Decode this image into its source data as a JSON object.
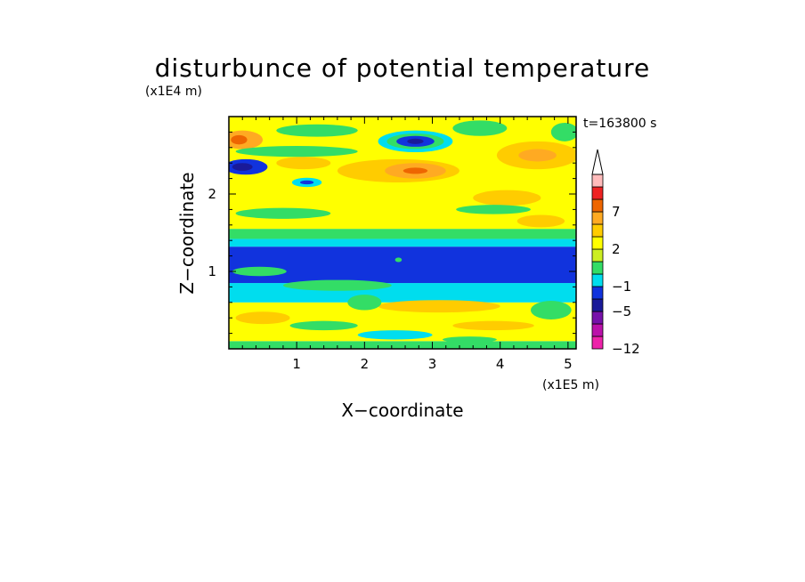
{
  "chart_data": {
    "type": "heatmap",
    "title": "disturbunce of potential temperature",
    "y_scale_label": "(x1E4 m)",
    "x_scale_label": "(x1E5 m)",
    "time_label": "t=163800 s",
    "xlabel": "X−coordinate",
    "ylabel": "Z−coordinate",
    "xlim": [
      0,
      5.12
    ],
    "ylim": [
      0,
      3.0
    ],
    "x_ticks": [
      1,
      2,
      3,
      4,
      5
    ],
    "y_ticks": [
      1,
      2
    ],
    "colorbar": {
      "levels": [
        -12,
        -10,
        -8,
        -5,
        -3,
        -1,
        0,
        1,
        2,
        3,
        5,
        7,
        9,
        11
      ],
      "labels": [
        {
          "value": -12,
          "text": "−12"
        },
        {
          "value": -5,
          "text": "−5"
        },
        {
          "value": -1,
          "text": "−1"
        },
        {
          "value": 2,
          "text": "2"
        },
        {
          "value": 7,
          "text": "7"
        }
      ],
      "colors": [
        "#ee22aa",
        "#bb11aa",
        "#7711aa",
        "#1a1a99",
        "#1133dd",
        "#00ddee",
        "#33dd66",
        "#ccee22",
        "#ffff00",
        "#ffcc00",
        "#ffaa22",
        "#ee6600",
        "#ee2222",
        "#ffbbbb"
      ],
      "extend_top": true
    },
    "field_bands": [
      {
        "z0": 0.0,
        "z1": 0.1,
        "color": "#33dd66"
      },
      {
        "z0": 0.1,
        "z1": 0.6,
        "color": "#ffff00"
      },
      {
        "z0": 0.6,
        "z1": 0.85,
        "color": "#00ddee"
      },
      {
        "z0": 0.85,
        "z1": 1.32,
        "color": "#1133dd"
      },
      {
        "z0": 1.32,
        "z1": 1.42,
        "color": "#00ddee"
      },
      {
        "z0": 1.42,
        "z1": 1.55,
        "color": "#33dd66"
      },
      {
        "z0": 1.55,
        "z1": 3.0,
        "color": "#ffff00"
      }
    ],
    "field_features": [
      {
        "x": 2.75,
        "z": 2.68,
        "rx": 0.55,
        "rz": 0.14,
        "color": "#00ddee"
      },
      {
        "x": 2.75,
        "z": 2.68,
        "rx": 0.42,
        "rz": 0.1,
        "color": "#33dd66"
      },
      {
        "x": 2.75,
        "z": 2.68,
        "rx": 0.28,
        "rz": 0.07,
        "color": "#1133dd"
      },
      {
        "x": 2.75,
        "z": 2.68,
        "rx": 0.12,
        "rz": 0.035,
        "color": "#1a1a99"
      },
      {
        "x": 0.25,
        "z": 2.35,
        "rx": 0.32,
        "rz": 0.1,
        "color": "#1133dd"
      },
      {
        "x": 0.2,
        "z": 2.35,
        "rx": 0.15,
        "rz": 0.05,
        "color": "#1a1a99"
      },
      {
        "x": 0.2,
        "z": 2.7,
        "rx": 0.3,
        "rz": 0.12,
        "color": "#ffaa22"
      },
      {
        "x": 0.15,
        "z": 2.7,
        "rx": 0.12,
        "rz": 0.06,
        "color": "#ee6600"
      },
      {
        "x": 2.5,
        "z": 2.3,
        "rx": 0.9,
        "rz": 0.15,
        "color": "#ffcc00"
      },
      {
        "x": 2.75,
        "z": 2.3,
        "rx": 0.45,
        "rz": 0.1,
        "color": "#ffaa22"
      },
      {
        "x": 2.75,
        "z": 2.3,
        "rx": 0.18,
        "rz": 0.04,
        "color": "#ee6600"
      },
      {
        "x": 4.55,
        "z": 2.5,
        "rx": 0.6,
        "rz": 0.18,
        "color": "#ffcc00"
      },
      {
        "x": 4.55,
        "z": 2.5,
        "rx": 0.28,
        "rz": 0.08,
        "color": "#ffaa22"
      },
      {
        "x": 4.1,
        "z": 1.95,
        "rx": 0.5,
        "rz": 0.1,
        "color": "#ffcc00"
      },
      {
        "x": 1.1,
        "z": 2.4,
        "rx": 0.4,
        "rz": 0.08,
        "color": "#ffcc00"
      },
      {
        "x": 1.15,
        "z": 2.15,
        "rx": 0.22,
        "rz": 0.06,
        "color": "#00ddee"
      },
      {
        "x": 1.15,
        "z": 2.15,
        "rx": 0.1,
        "rz": 0.025,
        "color": "#1133dd"
      },
      {
        "x": 1.0,
        "z": 2.55,
        "rx": 0.9,
        "rz": 0.07,
        "color": "#33dd66"
      },
      {
        "x": 0.8,
        "z": 1.75,
        "rx": 0.7,
        "rz": 0.07,
        "color": "#33dd66"
      },
      {
        "x": 3.9,
        "z": 1.8,
        "rx": 0.55,
        "rz": 0.06,
        "color": "#33dd66"
      },
      {
        "x": 3.7,
        "z": 2.85,
        "rx": 0.4,
        "rz": 0.1,
        "color": "#33dd66"
      },
      {
        "x": 1.3,
        "z": 2.82,
        "rx": 0.6,
        "rz": 0.08,
        "color": "#33dd66"
      },
      {
        "x": 4.95,
        "z": 2.8,
        "rx": 0.2,
        "rz": 0.12,
        "color": "#33dd66"
      },
      {
        "x": 4.6,
        "z": 1.65,
        "rx": 0.35,
        "rz": 0.08,
        "color": "#ffcc00"
      },
      {
        "x": 0.45,
        "z": 1.0,
        "rx": 0.4,
        "rz": 0.06,
        "color": "#33dd66"
      },
      {
        "x": 1.6,
        "z": 0.82,
        "rx": 0.8,
        "rz": 0.07,
        "color": "#33dd66"
      },
      {
        "x": 3.1,
        "z": 0.55,
        "rx": 0.9,
        "rz": 0.08,
        "color": "#ffcc00"
      },
      {
        "x": 0.5,
        "z": 0.4,
        "rx": 0.4,
        "rz": 0.08,
        "color": "#ffcc00"
      },
      {
        "x": 3.9,
        "z": 0.3,
        "rx": 0.6,
        "rz": 0.06,
        "color": "#ffcc00"
      },
      {
        "x": 1.4,
        "z": 0.3,
        "rx": 0.5,
        "rz": 0.06,
        "color": "#33dd66"
      },
      {
        "x": 4.75,
        "z": 0.5,
        "rx": 0.3,
        "rz": 0.12,
        "color": "#33dd66"
      },
      {
        "x": 2.0,
        "z": 0.6,
        "rx": 0.25,
        "rz": 0.1,
        "color": "#33dd66"
      },
      {
        "x": 2.45,
        "z": 0.18,
        "rx": 0.55,
        "rz": 0.06,
        "color": "#00ddee"
      },
      {
        "x": 3.55,
        "z": 0.12,
        "rx": 0.4,
        "rz": 0.04,
        "color": "#33dd66"
      },
      {
        "x": 2.5,
        "z": 1.15,
        "rx": 0.05,
        "rz": 0.03,
        "color": "#33dd66"
      }
    ]
  }
}
